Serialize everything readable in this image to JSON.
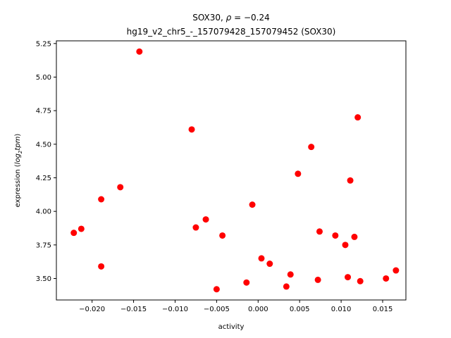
{
  "chart_data": {
    "type": "scatter",
    "title_line1_prefix": "SOX30, ",
    "title_line1_rho": "ρ",
    "title_line1_suffix": " = −0.24",
    "title_line2": "hg19_v2_chr5_-_157079428_157079452 (SOX30)",
    "xlabel": "activity",
    "ylabel_prefix": "expression (",
    "ylabel_log": "log",
    "ylabel_sub": "2",
    "ylabel_tpm": "tpm",
    "ylabel_suffix": ")",
    "xlim": [
      -0.0243,
      0.0178
    ],
    "ylim": [
      3.34,
      5.27
    ],
    "xticks": [
      -0.02,
      -0.015,
      -0.01,
      -0.005,
      0.0,
      0.005,
      0.01,
      0.015
    ],
    "xtick_labels": [
      "−0.020",
      "−0.015",
      "−0.010",
      "−0.005",
      "0.000",
      "0.005",
      "0.010",
      "0.015"
    ],
    "yticks": [
      3.5,
      3.75,
      4.0,
      4.25,
      4.5,
      4.75,
      5.0,
      5.25
    ],
    "ytick_labels": [
      "3.50",
      "3.75",
      "4.00",
      "4.25",
      "4.50",
      "4.75",
      "5.00",
      "5.25"
    ],
    "marker_color": "#ff0000",
    "grid": false,
    "points": [
      {
        "x": -0.0222,
        "y": 3.84
      },
      {
        "x": -0.0213,
        "y": 3.87
      },
      {
        "x": -0.0189,
        "y": 4.09
      },
      {
        "x": -0.0189,
        "y": 3.59
      },
      {
        "x": -0.0166,
        "y": 4.18
      },
      {
        "x": -0.0143,
        "y": 5.19
      },
      {
        "x": -0.008,
        "y": 4.61
      },
      {
        "x": -0.0075,
        "y": 3.88
      },
      {
        "x": -0.0063,
        "y": 3.94
      },
      {
        "x": -0.005,
        "y": 3.42
      },
      {
        "x": -0.0043,
        "y": 3.82
      },
      {
        "x": -0.0014,
        "y": 3.47
      },
      {
        "x": -0.0007,
        "y": 4.05
      },
      {
        "x": 0.0004,
        "y": 3.65
      },
      {
        "x": 0.0014,
        "y": 3.61
      },
      {
        "x": 0.0034,
        "y": 3.44
      },
      {
        "x": 0.0039,
        "y": 3.53
      },
      {
        "x": 0.0048,
        "y": 4.28
      },
      {
        "x": 0.0064,
        "y": 4.48
      },
      {
        "x": 0.0072,
        "y": 3.49
      },
      {
        "x": 0.0074,
        "y": 3.85
      },
      {
        "x": 0.0093,
        "y": 3.82
      },
      {
        "x": 0.0105,
        "y": 3.75
      },
      {
        "x": 0.0108,
        "y": 3.51
      },
      {
        "x": 0.0111,
        "y": 4.23
      },
      {
        "x": 0.0116,
        "y": 3.81
      },
      {
        "x": 0.012,
        "y": 4.7
      },
      {
        "x": 0.0123,
        "y": 3.48
      },
      {
        "x": 0.0154,
        "y": 3.5
      },
      {
        "x": 0.0166,
        "y": 3.56
      }
    ]
  }
}
